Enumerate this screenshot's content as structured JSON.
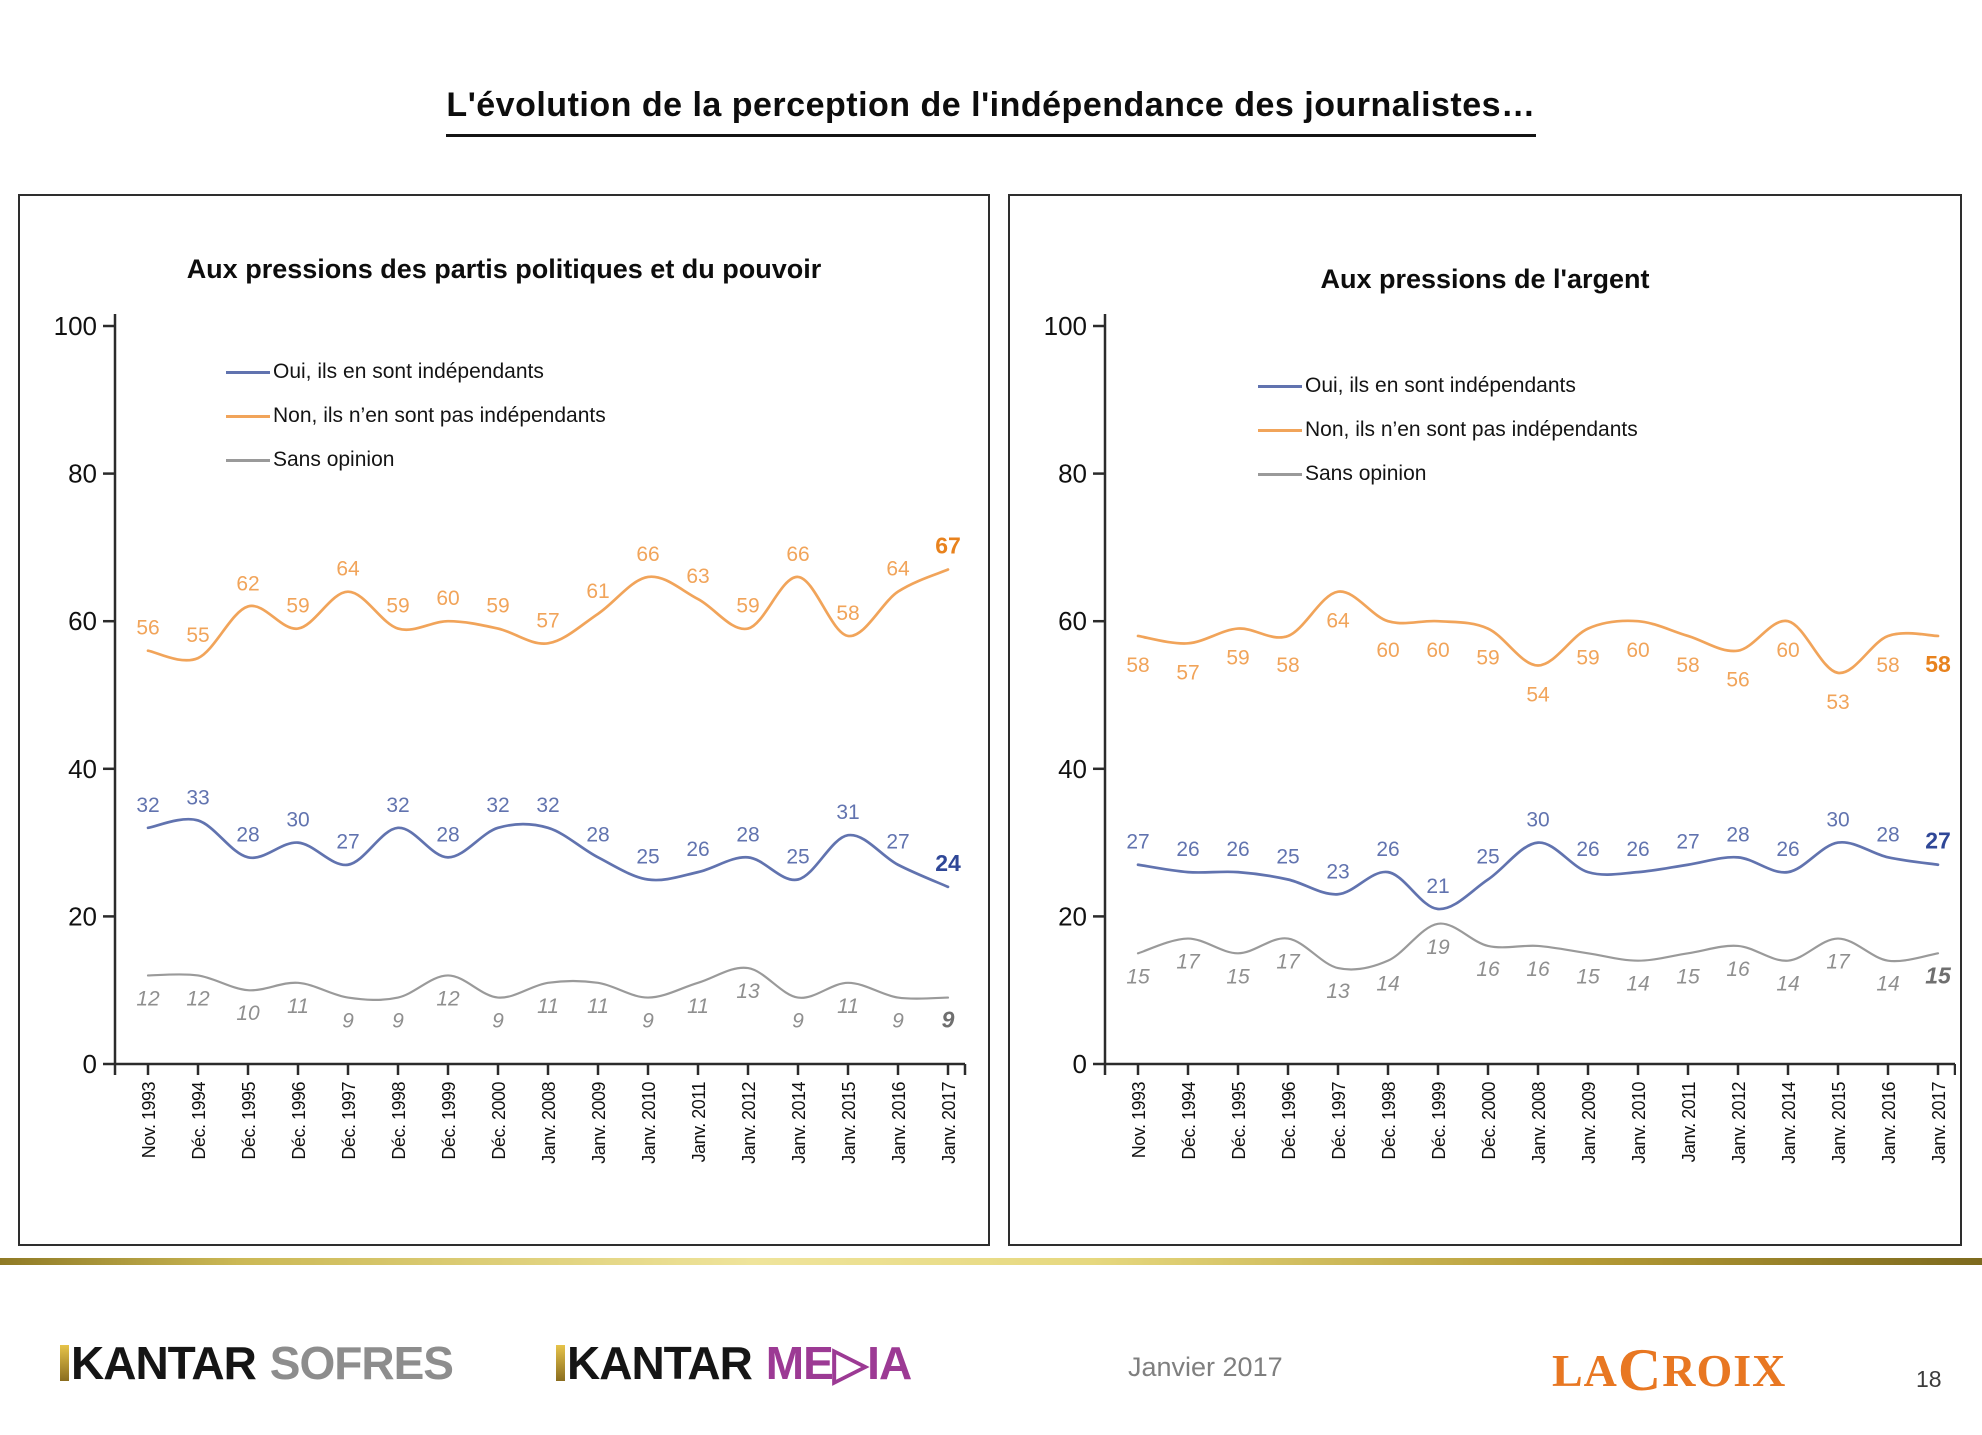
{
  "title": "L'évolution de la perception de l'indépendance des journalistes…",
  "colors": {
    "axis": "#2b2b2b",
    "tick_label": "#111111",
    "oui_line": "#6173af",
    "oui_label": "#6173af",
    "oui_last": "#2f4797",
    "non_line": "#f1a45a",
    "non_label": "#f1a45a",
    "non_last": "#e8821d",
    "sans_line": "#9a9a9a",
    "sans_label": "#8f8f8f",
    "sans_last": "#6f6f6f"
  },
  "chart_data": [
    {
      "type": "line",
      "title": "Aux pressions des partis politiques et du pouvoir",
      "xlabel": "",
      "ylabel": "",
      "ylim": [
        0,
        100
      ],
      "yticks": [
        0,
        20,
        40,
        60,
        80,
        100
      ],
      "grid": false,
      "legend_position": "upper-center-inside",
      "categories": [
        "Nov. 1993",
        "Déc. 1994",
        "Déc. 1995",
        "Déc. 1996",
        "Déc. 1997",
        "Déc. 1998",
        "Déc. 1999",
        "Déc. 2000",
        "Janv. 2008",
        "Janv. 2009",
        "Janv. 2010",
        "Janv. 2011",
        "Janv. 2012",
        "Janv. 2014",
        "Janv. 2015",
        "Janv. 2016",
        "Janv. 2017"
      ],
      "series": [
        {
          "name": "Oui, ils en sont indépendants",
          "key": "oui",
          "label_pos": "above",
          "italic": false,
          "values": [
            32,
            33,
            28,
            30,
            27,
            32,
            28,
            32,
            32,
            28,
            25,
            26,
            28,
            25,
            31,
            27,
            24
          ]
        },
        {
          "name": "Non, ils n’en sont pas indépendants",
          "key": "non",
          "label_pos": "above",
          "italic": false,
          "values": [
            56,
            55,
            62,
            59,
            64,
            59,
            60,
            59,
            57,
            61,
            66,
            63,
            59,
            66,
            58,
            64,
            67
          ]
        },
        {
          "name": "Sans opinion",
          "key": "sans",
          "label_pos": "below",
          "italic": true,
          "values": [
            12,
            12,
            10,
            11,
            9,
            9,
            12,
            9,
            11,
            11,
            9,
            11,
            13,
            9,
            11,
            9,
            9
          ]
        }
      ]
    },
    {
      "type": "line",
      "title": "Aux  pressions de l'argent",
      "xlabel": "",
      "ylabel": "",
      "ylim": [
        0,
        100
      ],
      "yticks": [
        0,
        20,
        40,
        60,
        80,
        100
      ],
      "grid": false,
      "legend_position": "upper-center-inside",
      "categories": [
        "Nov. 1993",
        "Déc. 1994",
        "Déc. 1995",
        "Déc. 1996",
        "Déc. 1997",
        "Déc. 1998",
        "Déc. 1999",
        "Déc. 2000",
        "Janv. 2008",
        "Janv. 2009",
        "Janv. 2010",
        "Janv. 2011",
        "Janv. 2012",
        "Janv. 2014",
        "Janv. 2015",
        "Janv. 2016",
        "Janv. 2017"
      ],
      "series": [
        {
          "name": "Oui, ils en sont indépendants",
          "key": "oui",
          "label_pos": "above",
          "italic": false,
          "values": [
            27,
            26,
            26,
            25,
            23,
            26,
            21,
            25,
            30,
            26,
            26,
            27,
            28,
            26,
            30,
            28,
            27
          ]
        },
        {
          "name": "Non, ils n’en sont pas indépendants",
          "key": "non",
          "label_pos": "below",
          "italic": false,
          "values": [
            58,
            57,
            59,
            58,
            64,
            60,
            60,
            59,
            54,
            59,
            60,
            58,
            56,
            60,
            53,
            58,
            58
          ]
        },
        {
          "name": "Sans opinion",
          "key": "sans",
          "label_pos": "below",
          "italic": true,
          "values": [
            15,
            17,
            15,
            17,
            13,
            14,
            19,
            16,
            16,
            15,
            14,
            15,
            16,
            14,
            17,
            14,
            15
          ]
        }
      ]
    }
  ],
  "footer": {
    "kantar_sofres": {
      "kantar": "KANTAR",
      "sofres": "SOFRES"
    },
    "kantar_media": {
      "kantar": "KANTAR",
      "media": "ME▷IA"
    },
    "date": "Janvier 2017",
    "lacroix": {
      "la": "LA",
      "c": "C",
      "roix": "ROIX"
    },
    "page_number": "18"
  }
}
